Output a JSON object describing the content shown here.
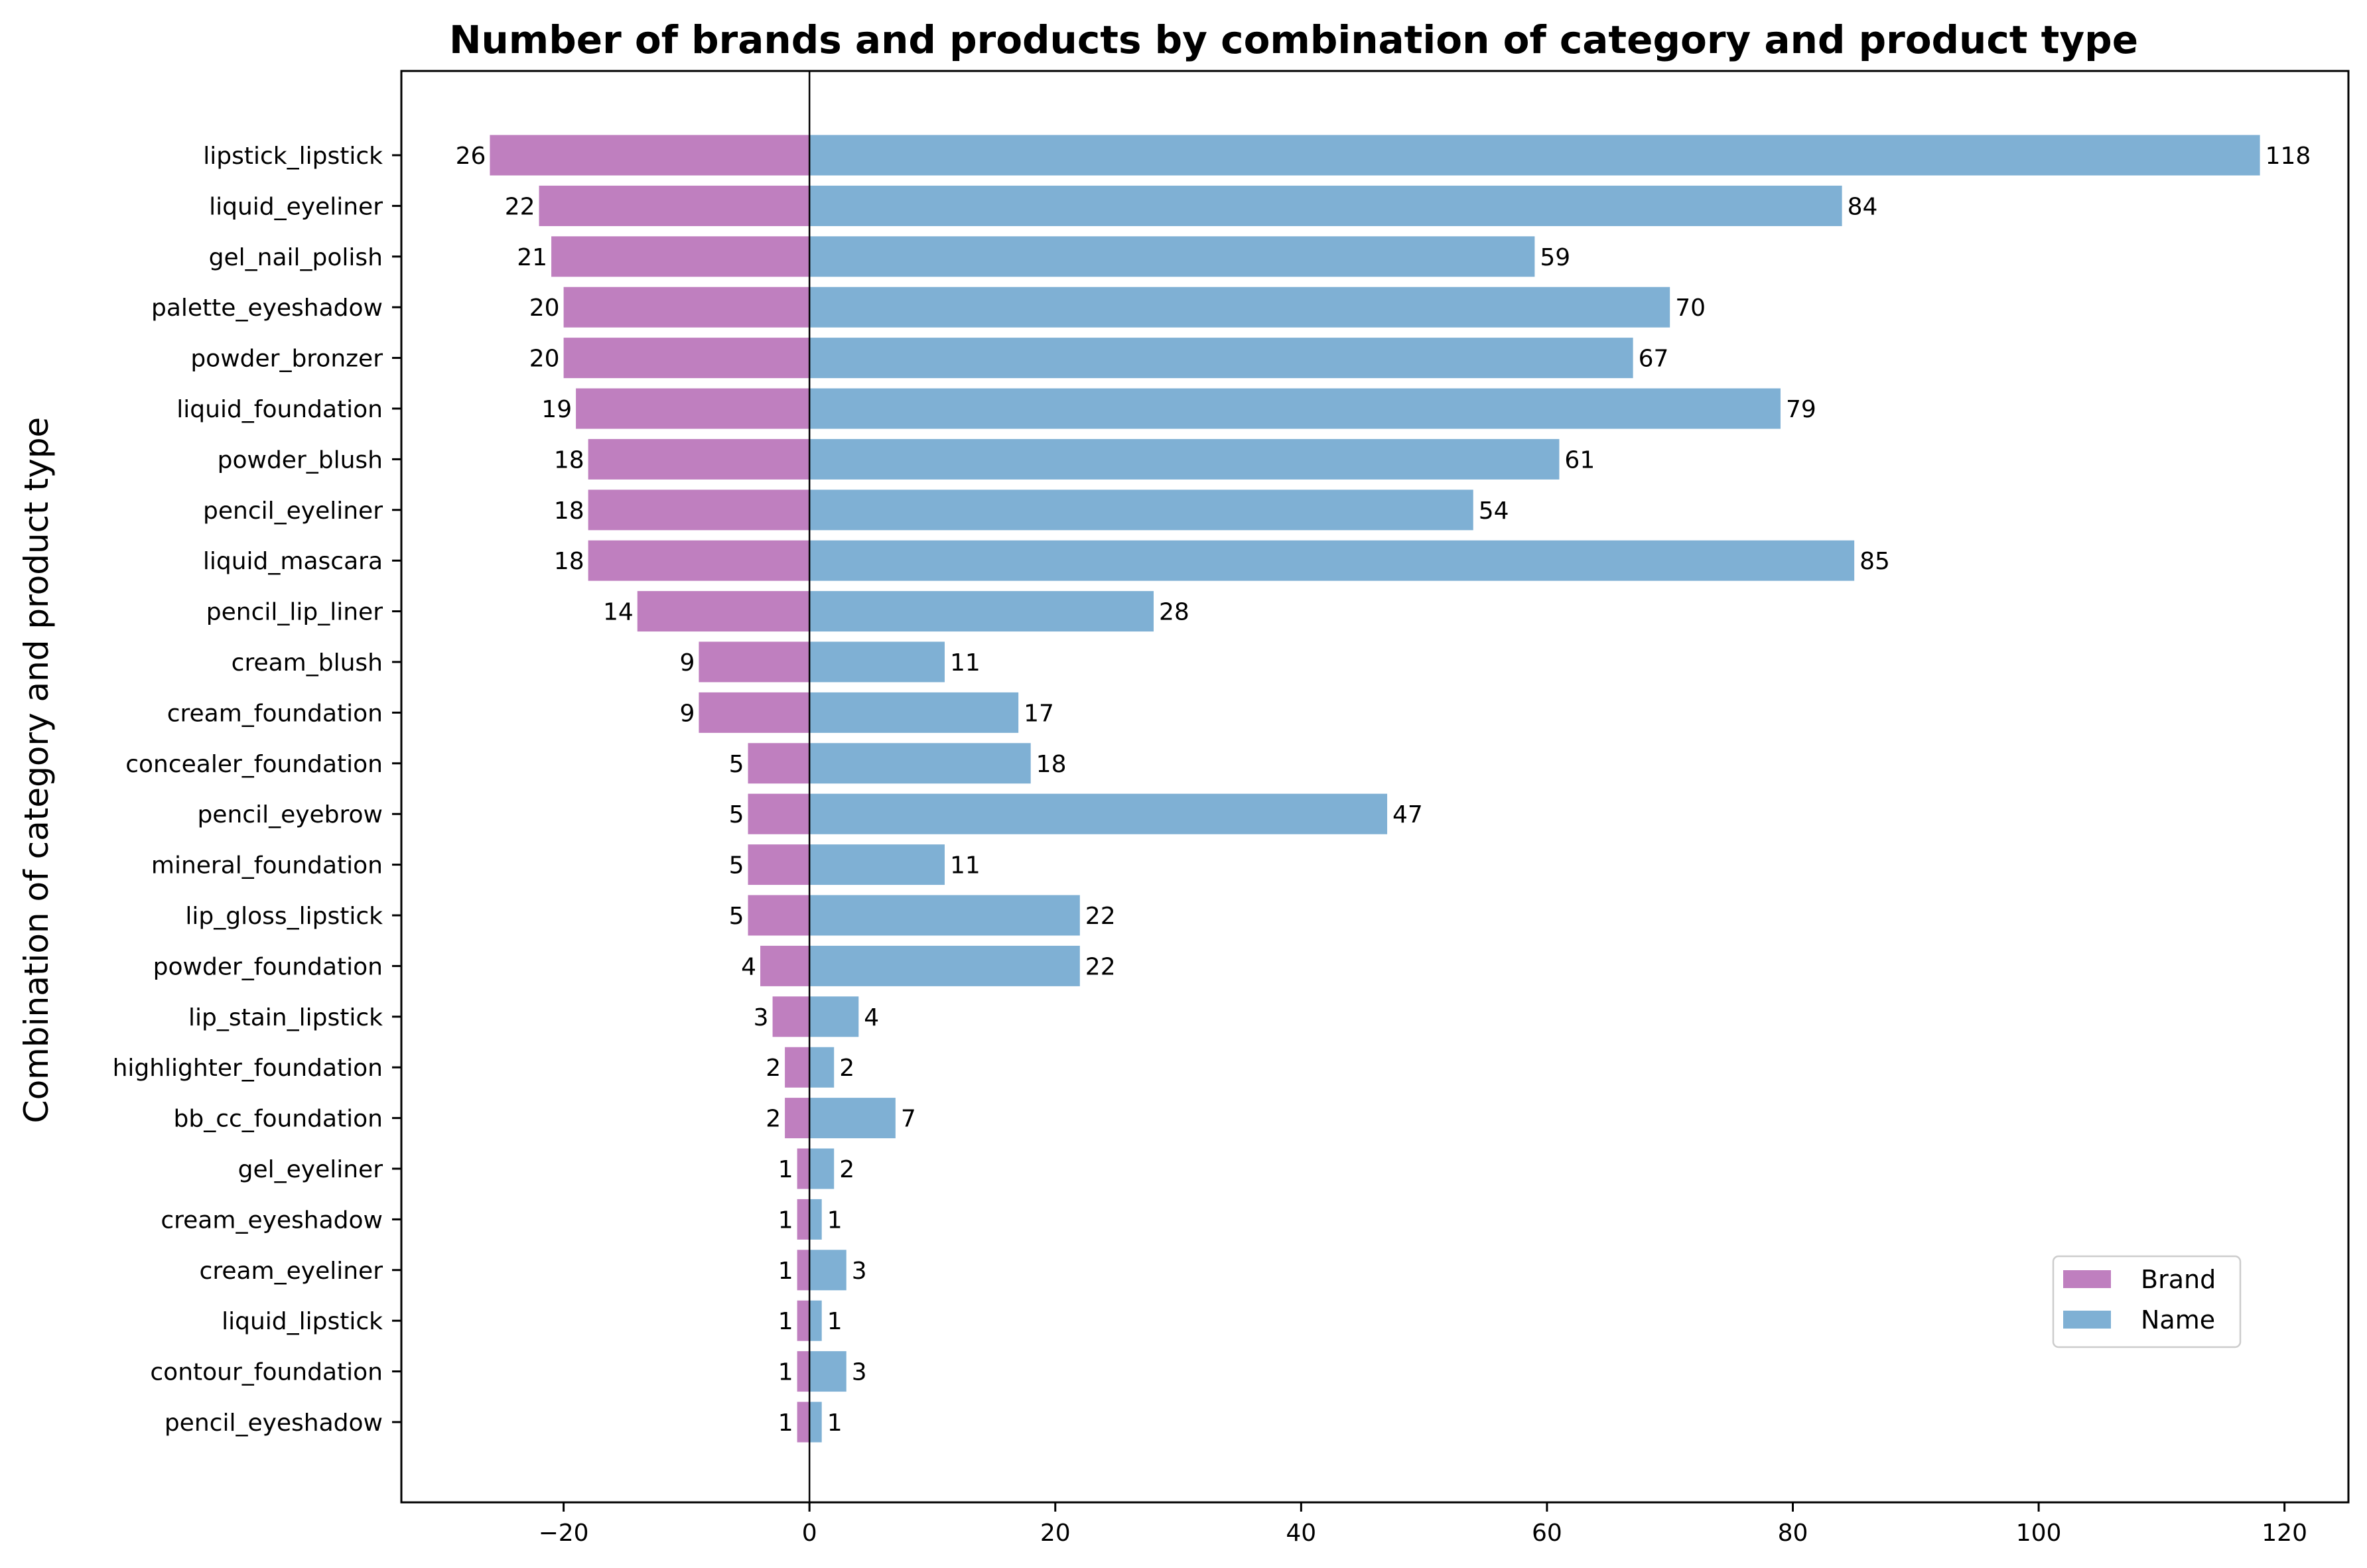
{
  "chart_data": {
    "type": "bar",
    "orientation": "horizontal",
    "title": "Number of brands and products by combination of category and product type",
    "xlabel": "",
    "ylabel": "Combination of category and product type",
    "xlim": [
      -33.2,
      125.2
    ],
    "xticks": [
      -20,
      0,
      20,
      40,
      60,
      80,
      100,
      120
    ],
    "xtick_labels": [
      "−20",
      "0",
      "20",
      "40",
      "60",
      "80",
      "100",
      "120"
    ],
    "grid": false,
    "legend_position": "lower-right",
    "categories": [
      "lipstick_lipstick",
      "liquid_eyeliner",
      "gel_nail_polish",
      "palette_eyeshadow",
      "powder_bronzer",
      "liquid_foundation",
      "powder_blush",
      "pencil_eyeliner",
      "liquid_mascara",
      "pencil_lip_liner",
      "cream_blush",
      "cream_foundation",
      "concealer_foundation",
      "pencil_eyebrow",
      "mineral_foundation",
      "lip_gloss_lipstick",
      "powder_foundation",
      "lip_stain_lipstick",
      "highlighter_foundation",
      "bb_cc_foundation",
      "gel_eyeliner",
      "cream_eyeshadow",
      "cream_eyeliner",
      "liquid_lipstick",
      "contour_foundation",
      "pencil_eyeshadow"
    ],
    "series": [
      {
        "name": "Brand",
        "color": "#bf7fbf",
        "direction": "negative",
        "values": [
          26,
          22,
          21,
          20,
          20,
          19,
          18,
          18,
          18,
          14,
          9,
          9,
          5,
          5,
          5,
          5,
          4,
          3,
          2,
          2,
          1,
          1,
          1,
          1,
          1,
          1
        ]
      },
      {
        "name": "Name",
        "color": "#7fb0d4",
        "direction": "positive",
        "values": [
          118,
          84,
          59,
          70,
          67,
          79,
          61,
          54,
          85,
          28,
          11,
          17,
          18,
          47,
          11,
          22,
          22,
          4,
          2,
          7,
          2,
          1,
          3,
          1,
          3,
          1
        ]
      }
    ]
  }
}
